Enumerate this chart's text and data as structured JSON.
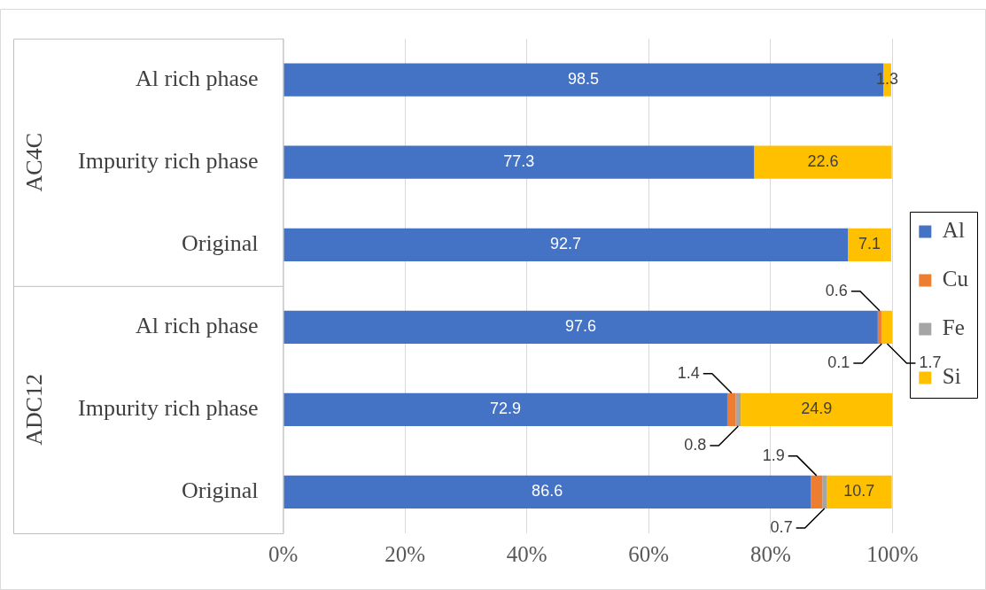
{
  "chart_data": {
    "type": "bar",
    "orientation": "horizontal",
    "stacked": true,
    "categories": [
      "Al rich phase",
      "Impurity rich phase",
      "Original",
      "Al rich phase",
      "Impurity rich phase",
      "Original"
    ],
    "series": [
      {
        "name": "Al",
        "color": "#4472c4",
        "values": [
          98.5,
          77.3,
          92.7,
          97.6,
          72.9,
          86.6
        ]
      },
      {
        "name": "Cu",
        "color": "#ed7d31",
        "values": [
          null,
          null,
          null,
          0.6,
          1.4,
          1.9
        ]
      },
      {
        "name": "Fe",
        "color": "#a5a5a5",
        "values": [
          null,
          null,
          null,
          0.1,
          0.8,
          0.7
        ]
      },
      {
        "name": "Si",
        "color": "#ffc000",
        "values": [
          1.3,
          22.6,
          7.1,
          1.7,
          24.9,
          10.7
        ]
      }
    ],
    "xlim": [
      0,
      100
    ],
    "xticks": [
      {
        "value": 0,
        "label": "0%"
      },
      {
        "value": 20,
        "label": "20%"
      },
      {
        "value": 40,
        "label": "40%"
      },
      {
        "value": 60,
        "label": "60%"
      },
      {
        "value": 80,
        "label": "80%"
      },
      {
        "value": 100,
        "label": "100%"
      }
    ],
    "annotations": [
      "AC4C",
      "ADC12"
    ],
    "grid": "x",
    "legend": "right",
    "data_labels": true
  }
}
